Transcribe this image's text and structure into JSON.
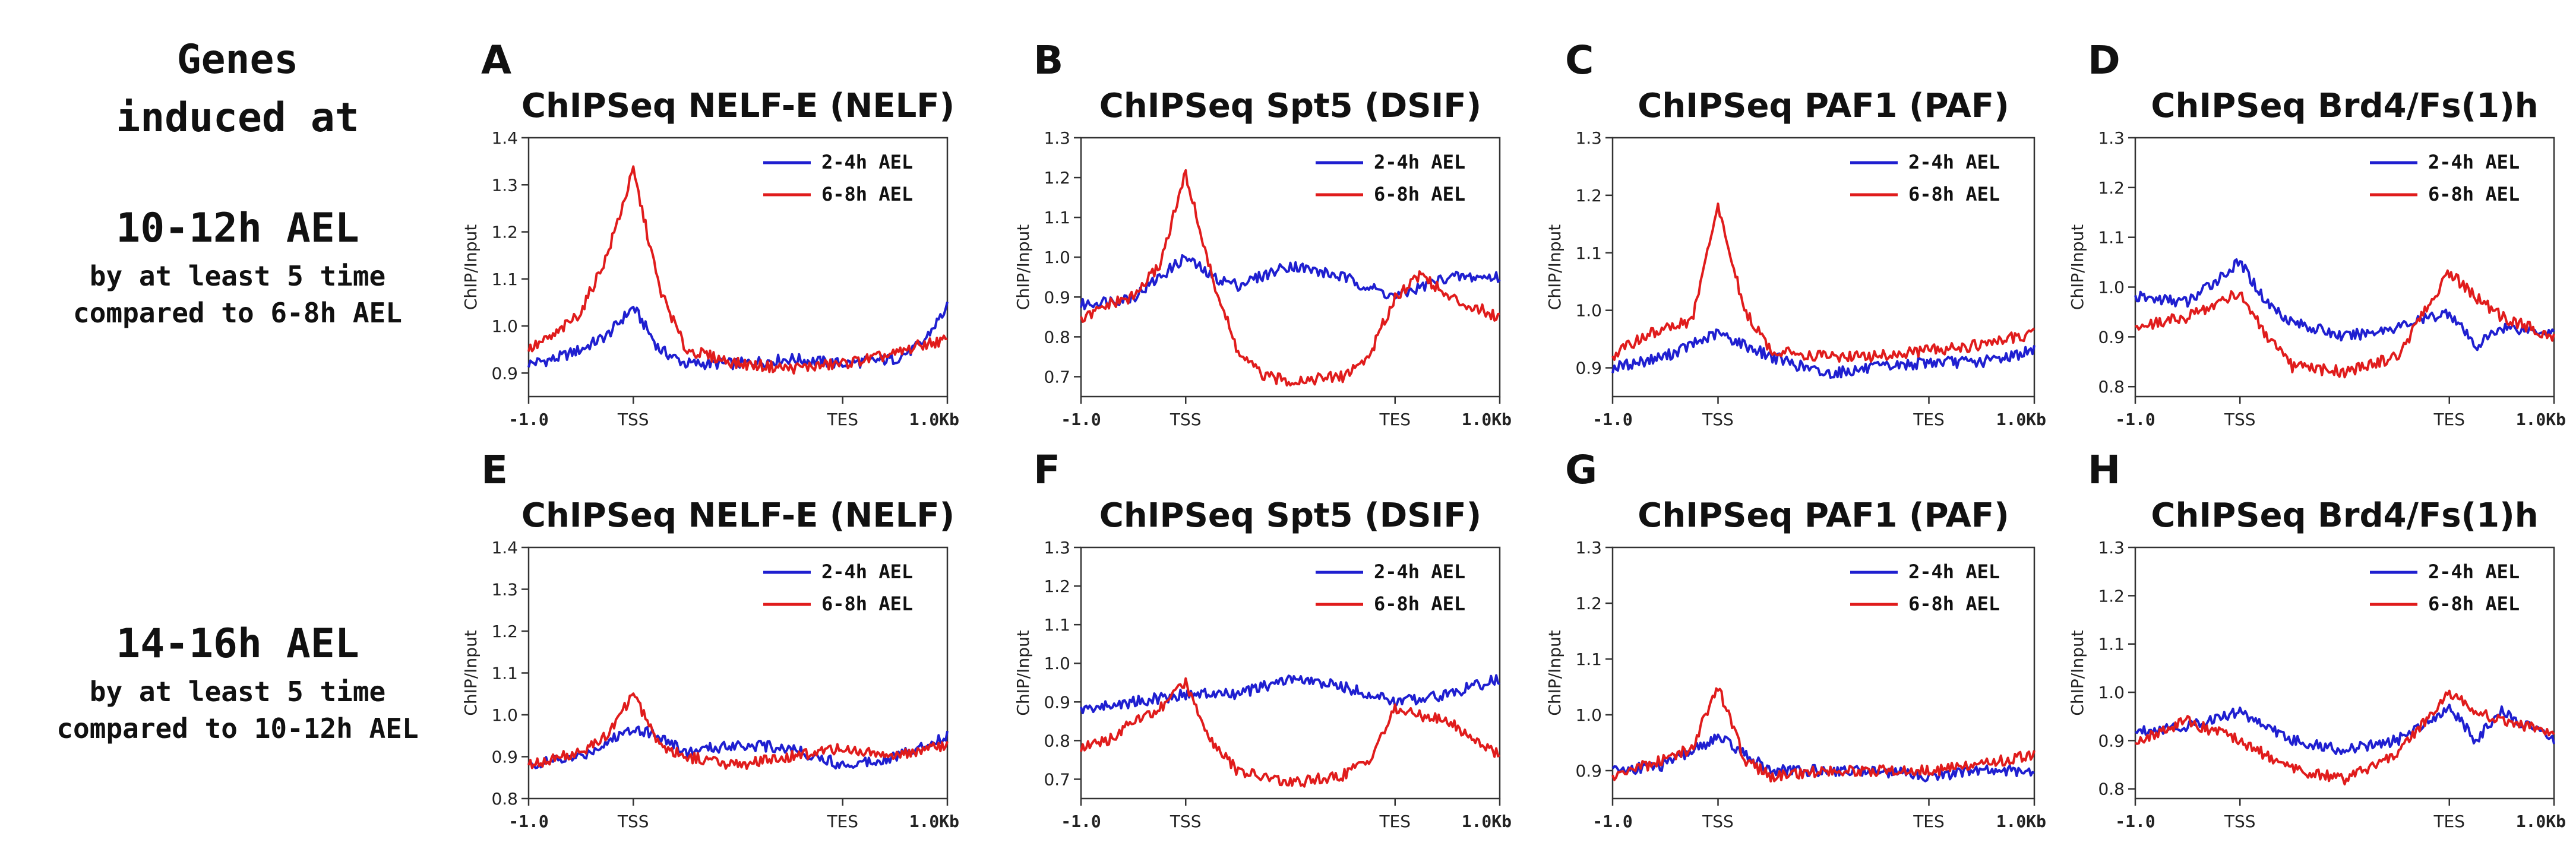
{
  "side": {
    "top_head_line1": "Genes",
    "top_head_line2": "induced at",
    "top_time": "10-12h AEL",
    "top_desc1": "by at least 5 time",
    "top_desc2": "compared to 6-8h AEL",
    "bot_time": "14-16h AEL",
    "bot_desc1": "by at least 5 time",
    "bot_desc2": "compared to 10-12h AEL"
  },
  "colors": {
    "blue": "#1f1fd0",
    "red": "#e01c1c"
  },
  "legend": [
    "2-4h AEL",
    "6-8h AEL"
  ],
  "xticks": [
    "-1.0",
    "TSS",
    "TES",
    "1.0Kb"
  ],
  "ylabel": "ChIP/Input",
  "chart_data": [
    {
      "letter": "A",
      "title": "ChIPSeq NELF-E (NELF)",
      "type": "line",
      "ylim": [
        0.85,
        1.4
      ],
      "yticks": [
        0.9,
        1.0,
        1.1,
        1.2,
        1.3,
        1.4
      ],
      "series": [
        {
          "name": "2-4h AEL",
          "points": [
            [
              -1.0,
              0.92
            ],
            [
              -0.75,
              0.93
            ],
            [
              -0.5,
              0.95
            ],
            [
              -0.25,
              0.98
            ],
            [
              0,
              1.04
            ],
            [
              0.25,
              0.95
            ],
            [
              0.5,
              0.92
            ],
            [
              1.0,
              0.92
            ],
            [
              1.5,
              0.93
            ],
            [
              2.0,
              0.92
            ],
            [
              2.5,
              0.93
            ],
            [
              2.75,
              0.96
            ],
            [
              3.0,
              1.04
            ]
          ]
        },
        {
          "name": "6-8h AEL",
          "points": [
            [
              -1.0,
              0.95
            ],
            [
              -0.75,
              0.98
            ],
            [
              -0.5,
              1.03
            ],
            [
              -0.25,
              1.15
            ],
            [
              0,
              1.33
            ],
            [
              0.25,
              1.08
            ],
            [
              0.5,
              0.95
            ],
            [
              1.0,
              0.92
            ],
            [
              1.5,
              0.91
            ],
            [
              2.0,
              0.92
            ],
            [
              2.5,
              0.94
            ],
            [
              2.75,
              0.96
            ],
            [
              3.0,
              0.97
            ]
          ]
        }
      ]
    },
    {
      "letter": "B",
      "title": "ChIPSeq Spt5 (DSIF)",
      "type": "line",
      "ylim": [
        0.65,
        1.3
      ],
      "yticks": [
        0.7,
        0.8,
        0.9,
        1.0,
        1.1,
        1.2,
        1.3
      ],
      "series": [
        {
          "name": "2-4h AEL",
          "points": [
            [
              -1.0,
              0.88
            ],
            [
              -0.5,
              0.9
            ],
            [
              0,
              1.0
            ],
            [
              0.25,
              0.95
            ],
            [
              0.5,
              0.93
            ],
            [
              1.0,
              0.98
            ],
            [
              1.5,
              0.95
            ],
            [
              2.0,
              0.9
            ],
            [
              2.5,
              0.95
            ],
            [
              3.0,
              0.95
            ]
          ]
        },
        {
          "name": "6-8h AEL",
          "points": [
            [
              -1.0,
              0.84
            ],
            [
              -0.75,
              0.88
            ],
            [
              -0.5,
              0.9
            ],
            [
              -0.25,
              0.98
            ],
            [
              0,
              1.21
            ],
            [
              0.25,
              0.95
            ],
            [
              0.5,
              0.76
            ],
            [
              0.75,
              0.7
            ],
            [
              1.0,
              0.69
            ],
            [
              1.5,
              0.7
            ],
            [
              1.75,
              0.75
            ],
            [
              2.0,
              0.9
            ],
            [
              2.25,
              0.96
            ],
            [
              2.5,
              0.9
            ],
            [
              3.0,
              0.85
            ]
          ]
        }
      ]
    },
    {
      "letter": "C",
      "title": "ChIPSeq PAF1 (PAF)",
      "type": "line",
      "ylim": [
        0.85,
        1.3
      ],
      "yticks": [
        0.9,
        1.0,
        1.1,
        1.2,
        1.3
      ],
      "series": [
        {
          "name": "2-4h AEL",
          "points": [
            [
              -1.0,
              0.9
            ],
            [
              -0.5,
              0.92
            ],
            [
              0,
              0.96
            ],
            [
              0.5,
              0.92
            ],
            [
              1.0,
              0.89
            ],
            [
              1.5,
              0.9
            ],
            [
              2.0,
              0.91
            ],
            [
              2.5,
              0.91
            ],
            [
              3.0,
              0.93
            ]
          ]
        },
        {
          "name": "6-8h AEL",
          "points": [
            [
              -1.0,
              0.92
            ],
            [
              -0.75,
              0.95
            ],
            [
              -0.5,
              0.97
            ],
            [
              -0.25,
              0.98
            ],
            [
              0,
              1.18
            ],
            [
              0.25,
              1.0
            ],
            [
              0.5,
              0.93
            ],
            [
              1.0,
              0.92
            ],
            [
              1.5,
              0.92
            ],
            [
              2.0,
              0.93
            ],
            [
              2.5,
              0.94
            ],
            [
              3.0,
              0.96
            ]
          ]
        }
      ]
    },
    {
      "letter": "D",
      "title": "ChIPSeq Brd4/Fs(1)h",
      "type": "line",
      "ylim": [
        0.78,
        1.3
      ],
      "yticks": [
        0.8,
        0.9,
        1.0,
        1.1,
        1.2,
        1.3
      ],
      "series": [
        {
          "name": "2-4h AEL",
          "points": [
            [
              -1.0,
              0.98
            ],
            [
              -0.5,
              0.97
            ],
            [
              0,
              1.05
            ],
            [
              0.25,
              0.97
            ],
            [
              0.5,
              0.93
            ],
            [
              1.0,
              0.9
            ],
            [
              1.5,
              0.92
            ],
            [
              2.0,
              0.95
            ],
            [
              2.25,
              0.88
            ],
            [
              2.5,
              0.92
            ],
            [
              3.0,
              0.91
            ]
          ]
        },
        {
          "name": "6-8h AEL",
          "points": [
            [
              -1.0,
              0.92
            ],
            [
              -0.5,
              0.94
            ],
            [
              0,
              0.99
            ],
            [
              0.25,
              0.9
            ],
            [
              0.5,
              0.84
            ],
            [
              1.0,
              0.83
            ],
            [
              1.5,
              0.86
            ],
            [
              2.0,
              1.03
            ],
            [
              2.25,
              0.98
            ],
            [
              2.5,
              0.94
            ],
            [
              3.0,
              0.9
            ]
          ]
        }
      ]
    },
    {
      "letter": "E",
      "title": "ChIPSeq NELF-E (NELF)",
      "type": "line",
      "ylim": [
        0.8,
        1.4
      ],
      "yticks": [
        0.8,
        0.9,
        1.0,
        1.1,
        1.2,
        1.3,
        1.4
      ],
      "series": [
        {
          "name": "2-4h AEL",
          "points": [
            [
              -1.0,
              0.88
            ],
            [
              -0.5,
              0.9
            ],
            [
              0,
              0.97
            ],
            [
              0.25,
              0.95
            ],
            [
              0.5,
              0.91
            ],
            [
              1.0,
              0.93
            ],
            [
              1.5,
              0.92
            ],
            [
              2.0,
              0.88
            ],
            [
              2.5,
              0.9
            ],
            [
              3.0,
              0.95
            ]
          ]
        },
        {
          "name": "6-8h AEL",
          "points": [
            [
              -1.0,
              0.88
            ],
            [
              -0.5,
              0.91
            ],
            [
              -0.25,
              0.95
            ],
            [
              0,
              1.05
            ],
            [
              0.25,
              0.93
            ],
            [
              0.5,
              0.9
            ],
            [
              1.0,
              0.88
            ],
            [
              1.5,
              0.9
            ],
            [
              2.0,
              0.92
            ],
            [
              2.5,
              0.9
            ],
            [
              3.0,
              0.93
            ]
          ]
        }
      ]
    },
    {
      "letter": "F",
      "title": "ChIPSeq Spt5 (DSIF)",
      "type": "line",
      "ylim": [
        0.65,
        1.3
      ],
      "yticks": [
        0.7,
        0.8,
        0.9,
        1.0,
        1.1,
        1.2,
        1.3
      ],
      "series": [
        {
          "name": "2-4h AEL",
          "points": [
            [
              -1.0,
              0.88
            ],
            [
              -0.5,
              0.9
            ],
            [
              0,
              0.92
            ],
            [
              0.5,
              0.92
            ],
            [
              1.0,
              0.96
            ],
            [
              1.5,
              0.94
            ],
            [
              2.0,
              0.9
            ],
            [
              2.5,
              0.92
            ],
            [
              3.0,
              0.96
            ]
          ]
        },
        {
          "name": "6-8h AEL",
          "points": [
            [
              -1.0,
              0.78
            ],
            [
              -0.75,
              0.8
            ],
            [
              -0.5,
              0.85
            ],
            [
              -0.25,
              0.88
            ],
            [
              0,
              0.95
            ],
            [
              0.25,
              0.8
            ],
            [
              0.5,
              0.72
            ],
            [
              1.0,
              0.69
            ],
            [
              1.5,
              0.71
            ],
            [
              1.75,
              0.75
            ],
            [
              2.0,
              0.88
            ],
            [
              2.5,
              0.85
            ],
            [
              3.0,
              0.76
            ]
          ]
        }
      ]
    },
    {
      "letter": "G",
      "title": "ChIPSeq PAF1 (PAF)",
      "type": "line",
      "ylim": [
        0.85,
        1.3
      ],
      "yticks": [
        0.9,
        1.0,
        1.1,
        1.2,
        1.3
      ],
      "series": [
        {
          "name": "2-4h AEL",
          "points": [
            [
              -1.0,
              0.9
            ],
            [
              -0.5,
              0.91
            ],
            [
              0,
              0.96
            ],
            [
              0.5,
              0.9
            ],
            [
              1.0,
              0.9
            ],
            [
              1.5,
              0.9
            ],
            [
              2.0,
              0.89
            ],
            [
              2.5,
              0.9
            ],
            [
              3.0,
              0.9
            ]
          ]
        },
        {
          "name": "6-8h AEL",
          "points": [
            [
              -1.0,
              0.89
            ],
            [
              -0.5,
              0.92
            ],
            [
              -0.25,
              0.94
            ],
            [
              0,
              1.05
            ],
            [
              0.25,
              0.92
            ],
            [
              0.5,
              0.89
            ],
            [
              1.0,
              0.9
            ],
            [
              1.5,
              0.9
            ],
            [
              2.0,
              0.9
            ],
            [
              2.5,
              0.91
            ],
            [
              3.0,
              0.93
            ]
          ]
        }
      ]
    },
    {
      "letter": "H",
      "title": "ChIPSeq Brd4/Fs(1)h",
      "type": "line",
      "ylim": [
        0.78,
        1.3
      ],
      "yticks": [
        0.8,
        0.9,
        1.0,
        1.1,
        1.2,
        1.3
      ],
      "series": [
        {
          "name": "2-4h AEL",
          "points": [
            [
              -1.0,
              0.92
            ],
            [
              -0.5,
              0.93
            ],
            [
              0,
              0.96
            ],
            [
              0.5,
              0.9
            ],
            [
              1.0,
              0.88
            ],
            [
              1.5,
              0.9
            ],
            [
              2.0,
              0.97
            ],
            [
              2.25,
              0.9
            ],
            [
              2.5,
              0.96
            ],
            [
              3.0,
              0.9
            ]
          ]
        },
        {
          "name": "6-8h AEL",
          "points": [
            [
              -1.0,
              0.9
            ],
            [
              -0.5,
              0.94
            ],
            [
              0,
              0.9
            ],
            [
              0.5,
              0.84
            ],
            [
              1.0,
              0.82
            ],
            [
              1.5,
              0.87
            ],
            [
              2.0,
              1.0
            ],
            [
              2.25,
              0.96
            ],
            [
              2.5,
              0.94
            ],
            [
              3.0,
              0.92
            ]
          ]
        }
      ]
    }
  ]
}
